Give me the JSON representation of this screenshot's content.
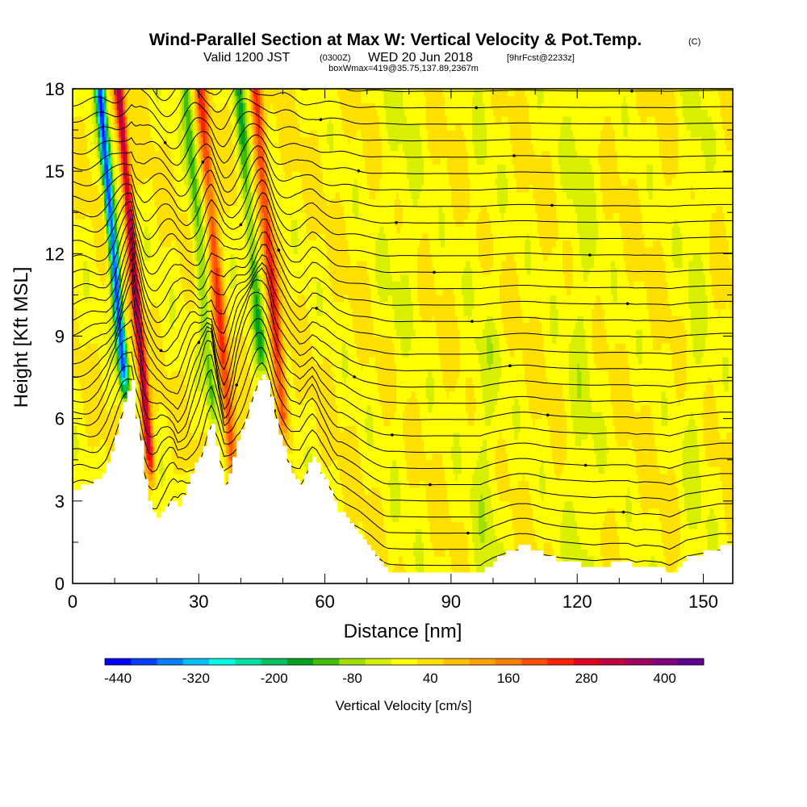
{
  "chart_data": {
    "type": "heatmap",
    "title": "Wind-Parallel Section at Max W: Vertical Velocity & Pot.Temp.",
    "title_mark": "(C)",
    "subtitle": {
      "valid": "Valid 1200 JST",
      "zulu": "(0300Z)",
      "date": "WED 20 Jun 2018",
      "forecast": "[9hrFcst@2233z]"
    },
    "box_info": "boxWmax=419@35.75,137.89,2367m",
    "xlabel": "Distance [nm]",
    "ylabel": "Height [Kft MSL]",
    "xlim": [
      0,
      157
    ],
    "ylim": [
      0,
      18
    ],
    "x_ticks": [
      0,
      30,
      60,
      90,
      120,
      150
    ],
    "y_ticks": [
      0,
      3,
      6,
      9,
      12,
      15,
      18
    ],
    "colorbar": {
      "label": "Vertical Velocity [cm/s]",
      "tick_labels": [
        -440,
        -320,
        -200,
        -80,
        40,
        160,
        280,
        400
      ],
      "colors": [
        "#0000ff",
        "#0040ff",
        "#0080ff",
        "#00c0ff",
        "#00ffe0",
        "#00e0a0",
        "#00c060",
        "#00a020",
        "#40c000",
        "#a0e000",
        "#d8f000",
        "#ffff00",
        "#ffe000",
        "#ffc000",
        "#ffa000",
        "#ff8000",
        "#ff5000",
        "#ff2000",
        "#e00020",
        "#c00040",
        "#a00060",
        "#800080",
        "#600090"
      ]
    },
    "terrain": [
      [
        0,
        3.4
      ],
      [
        2,
        3.5
      ],
      [
        4,
        3.6
      ],
      [
        6,
        3.8
      ],
      [
        8,
        4.3
      ],
      [
        10,
        5.3
      ],
      [
        12,
        6.6
      ],
      [
        13,
        7.0
      ],
      [
        14,
        7.3
      ],
      [
        15,
        6.0
      ],
      [
        16,
        5.2
      ],
      [
        17,
        3.8
      ],
      [
        18,
        3.0
      ],
      [
        19,
        2.6
      ],
      [
        20,
        2.4
      ],
      [
        21,
        2.6
      ],
      [
        22,
        2.7
      ],
      [
        23,
        2.9
      ],
      [
        24,
        3.0
      ],
      [
        25,
        2.8
      ],
      [
        26,
        3.2
      ],
      [
        27,
        3.5
      ],
      [
        28,
        4.0
      ],
      [
        29,
        4.3
      ],
      [
        30,
        4.5
      ],
      [
        31,
        5.0
      ],
      [
        32,
        5.6
      ],
      [
        33,
        5.8
      ],
      [
        34,
        5.0
      ],
      [
        35,
        4.2
      ],
      [
        36,
        3.5
      ],
      [
        37,
        3.9
      ],
      [
        38,
        4.5
      ],
      [
        39,
        5.2
      ],
      [
        40,
        5.6
      ],
      [
        41,
        6.0
      ],
      [
        42,
        6.5
      ],
      [
        43,
        7.0
      ],
      [
        44,
        7.4
      ],
      [
        45,
        7.6
      ],
      [
        46,
        7.4
      ],
      [
        47,
        6.8
      ],
      [
        48,
        6.0
      ],
      [
        49,
        5.4
      ],
      [
        50,
        4.9
      ],
      [
        51,
        4.4
      ],
      [
        52,
        4.0
      ],
      [
        53,
        3.8
      ],
      [
        54,
        3.6
      ],
      [
        55,
        3.9
      ],
      [
        56,
        4.3
      ],
      [
        57,
        4.6
      ],
      [
        58,
        4.4
      ],
      [
        59,
        4.0
      ],
      [
        60,
        3.7
      ],
      [
        61,
        3.3
      ],
      [
        62,
        2.9
      ],
      [
        63,
        2.6
      ],
      [
        64,
        2.5
      ],
      [
        65,
        2.3
      ],
      [
        66,
        2.1
      ],
      [
        67,
        1.9
      ],
      [
        68,
        1.7
      ],
      [
        69,
        1.5
      ],
      [
        70,
        1.3
      ],
      [
        71,
        1.1
      ],
      [
        72,
        0.9
      ],
      [
        73,
        0.7
      ],
      [
        74,
        0.5
      ],
      [
        75,
        0.4
      ],
      [
        80,
        0.3
      ],
      [
        90,
        0.3
      ],
      [
        97,
        0.3
      ],
      [
        98,
        0.5
      ],
      [
        100,
        0.8
      ],
      [
        102,
        1.0
      ],
      [
        104,
        1.2
      ],
      [
        106,
        1.3
      ],
      [
        108,
        1.3
      ],
      [
        110,
        1.2
      ],
      [
        112,
        1.0
      ],
      [
        114,
        0.9
      ],
      [
        116,
        0.8
      ],
      [
        120,
        0.7
      ],
      [
        124,
        0.6
      ],
      [
        128,
        0.7
      ],
      [
        132,
        0.7
      ],
      [
        134,
        0.5
      ],
      [
        136,
        0.6
      ],
      [
        140,
        0.5
      ],
      [
        142,
        0.3
      ],
      [
        144,
        0.6
      ],
      [
        146,
        0.9
      ],
      [
        148,
        1.0
      ],
      [
        150,
        1.1
      ],
      [
        152,
        1.2
      ],
      [
        154,
        1.3
      ],
      [
        157,
        1.3
      ]
    ],
    "updraft_features": [
      {
        "x": 12.5,
        "w": -420,
        "note": "strong downdraft column"
      },
      {
        "x": 17.0,
        "w": 330,
        "note": "strong updraft column"
      },
      {
        "x": 33.0,
        "w": -120,
        "note": "downdraft column"
      },
      {
        "x": 36.5,
        "w": 200,
        "note": "updraft column"
      },
      {
        "x": 45.5,
        "w": -140,
        "note": "downdraft column"
      },
      {
        "x": 49.5,
        "w": 220,
        "note": "updraft column"
      }
    ],
    "isentropes": {
      "count": 30,
      "contour": "pot_temp"
    }
  }
}
